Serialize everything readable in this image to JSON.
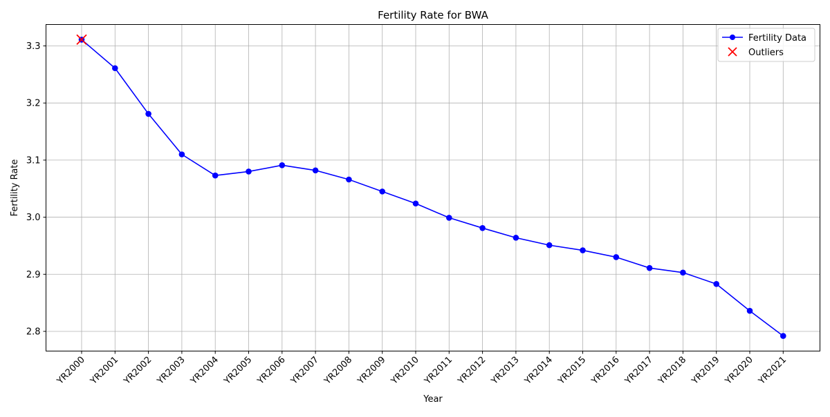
{
  "chart_data": {
    "type": "line",
    "title": "Fertility Rate for BWA",
    "xlabel": "Year",
    "ylabel": "Fertility Rate",
    "categories": [
      "YR2000",
      "YR2001",
      "YR2002",
      "YR2003",
      "YR2004",
      "YR2005",
      "YR2006",
      "YR2007",
      "YR2008",
      "YR2009",
      "YR2010",
      "YR2011",
      "YR2012",
      "YR2013",
      "YR2014",
      "YR2015",
      "YR2016",
      "YR2017",
      "YR2018",
      "YR2019",
      "YR2020",
      "YR2021"
    ],
    "series": [
      {
        "name": "Fertility Data",
        "color": "#0000ff",
        "marker": "circle",
        "values": [
          3.311,
          3.261,
          3.181,
          3.11,
          3.073,
          3.08,
          3.091,
          3.082,
          3.066,
          3.045,
          3.024,
          2.999,
          2.981,
          2.964,
          2.951,
          2.942,
          2.93,
          2.911,
          2.903,
          2.883,
          2.836,
          2.792
        ]
      }
    ],
    "outliers": {
      "name": "Outliers",
      "color": "#ff0000",
      "marker": "x",
      "points": [
        {
          "x": "YR2000",
          "y": 3.311
        }
      ]
    },
    "yticks": [
      2.8,
      2.9,
      3.0,
      3.1,
      3.2,
      3.3
    ],
    "ylim": [
      2.7655,
      3.3375
    ],
    "grid": true,
    "legend_position": "top-right"
  }
}
